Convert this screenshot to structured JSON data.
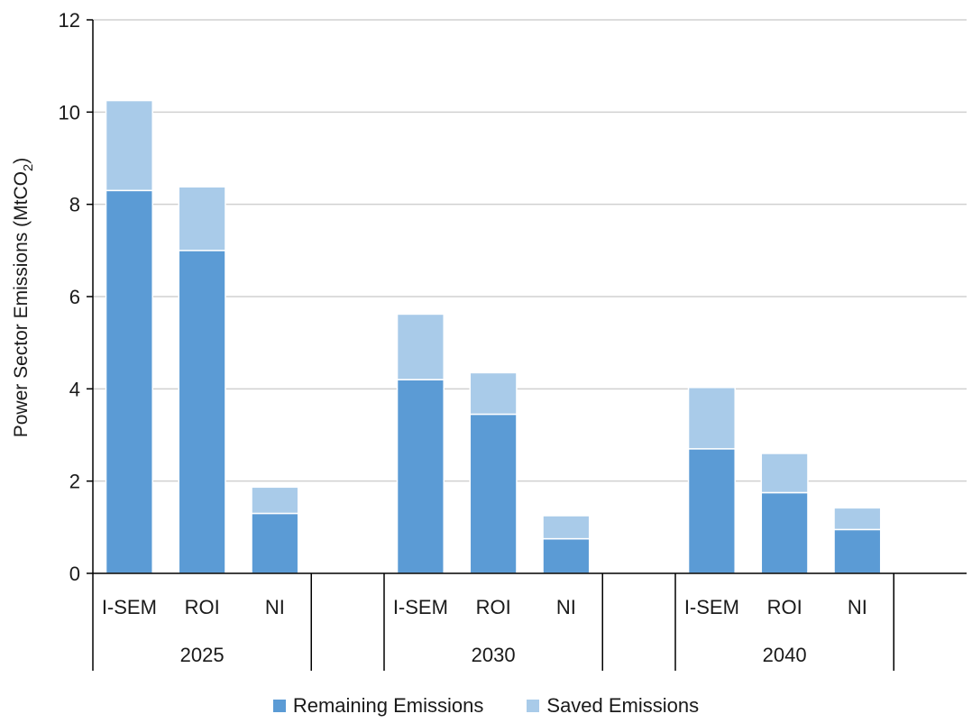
{
  "chart_data": {
    "type": "bar",
    "stacked": true,
    "ylabel": "Power Sector Emissions (MtCO",
    "ylabel_sub": "2",
    "ylabel_close": ")",
    "ylim": [
      0,
      12
    ],
    "yticks": [
      0,
      2,
      4,
      6,
      8,
      10,
      12
    ],
    "grid": true,
    "legend_position": "bottom",
    "groups": [
      {
        "label": "2025",
        "categories": [
          "I-SEM",
          "ROI",
          "NI"
        ]
      },
      {
        "label": "2030",
        "categories": [
          "I-SEM",
          "ROI",
          "NI"
        ]
      },
      {
        "label": "2040",
        "categories": [
          "I-SEM",
          "ROI",
          "NI"
        ]
      }
    ],
    "series": [
      {
        "name": "Remaining Emissions",
        "color": "#5b9bd5",
        "values": [
          [
            8.3,
            7.0,
            1.3
          ],
          [
            4.2,
            3.45,
            0.75
          ],
          [
            2.7,
            1.75,
            0.95
          ]
        ]
      },
      {
        "name": "Saved Emissions",
        "color": "#a9cbe9",
        "values": [
          [
            1.95,
            1.38,
            0.57
          ],
          [
            1.42,
            0.9,
            0.5
          ],
          [
            1.33,
            0.85,
            0.47
          ]
        ]
      }
    ]
  }
}
